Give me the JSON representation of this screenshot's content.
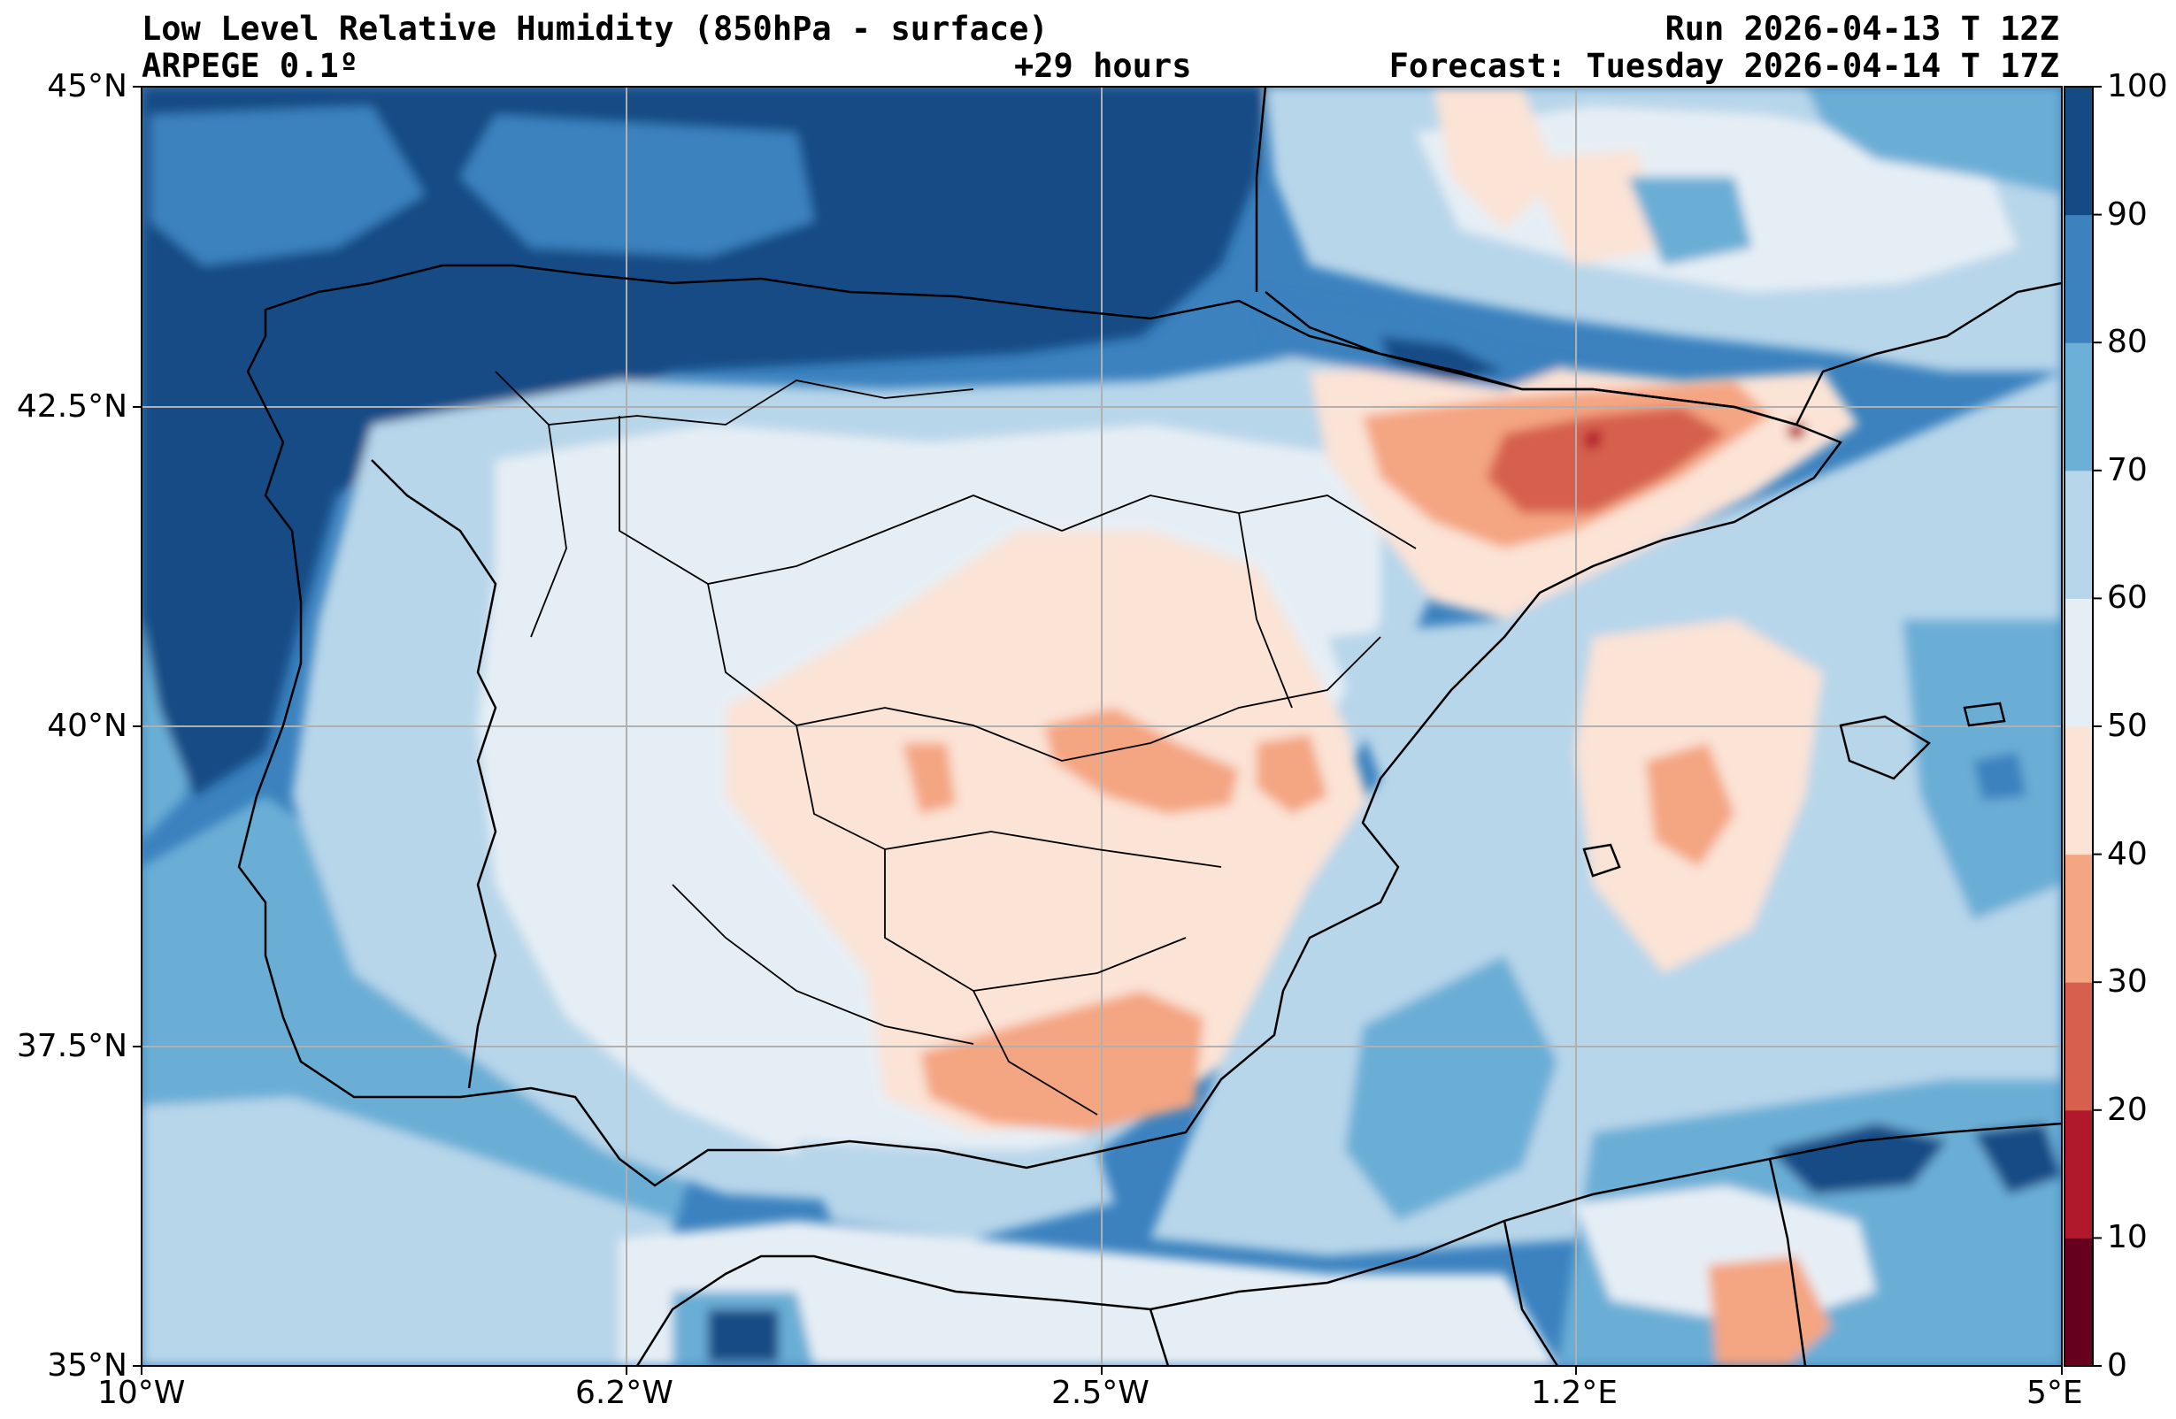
{
  "header": {
    "title": "Low Level Relative Humidity (850hPa - surface)",
    "model": "ARPEGE 0.1º",
    "run": "Run 2026-04-13 T 12Z",
    "lead": "+29 hours",
    "forecast": "Forecast: Tuesday 2026-04-14 T 17Z"
  },
  "axes": {
    "lat_labels": [
      "45°N",
      "42.5°N",
      "40°N",
      "37.5°N",
      "35°N"
    ],
    "lon_labels": [
      "10°W",
      "6.2°W",
      "2.5°W",
      "1.2°E",
      "5°E"
    ],
    "lat_range": [
      35,
      45
    ],
    "lon_range": [
      -10,
      5
    ]
  },
  "colorbar": {
    "levels": [
      0,
      10,
      20,
      30,
      40,
      50,
      60,
      70,
      80,
      90,
      100
    ],
    "tick_labels": [
      "0",
      "10",
      "20",
      "30",
      "40",
      "50",
      "60",
      "70",
      "80",
      "90",
      "100"
    ],
    "colors": [
      "#67001f",
      "#b2182b",
      "#d6604d",
      "#f4a582",
      "#fbe3d6",
      "#e6eef5",
      "#b7d6ea",
      "#6baed6",
      "#3b82bf",
      "#154b85"
    ]
  },
  "palette": {
    "sea_moist": "#3b82bf",
    "very_moist": "#154b85",
    "moist": "#6baed6",
    "mid": "#b7d6ea",
    "neutral": "#e6eef5",
    "dryish": "#fbe3d6",
    "dry": "#f4a582",
    "very_dry": "#d6604d",
    "border": "#000000",
    "grid": "#b0b0b0"
  }
}
